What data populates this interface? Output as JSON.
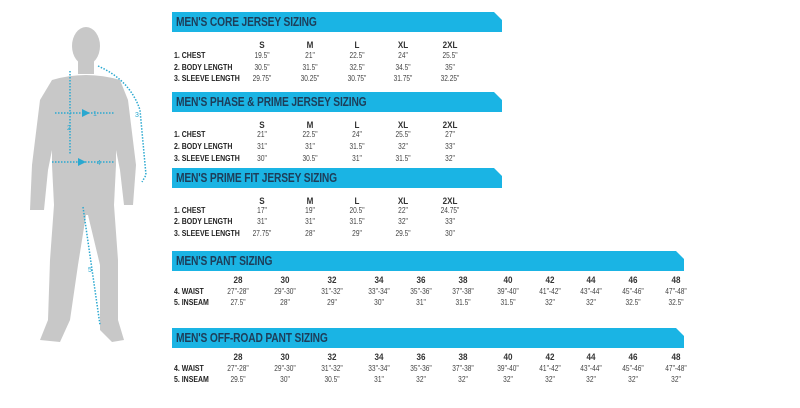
{
  "accent_color": "#1ab4e4",
  "title_color": "#1d3e5a",
  "figure": {
    "labels": [
      "1",
      "2",
      "3",
      "4",
      "5"
    ]
  },
  "tables": [
    {
      "title": "MEN'S CORE JERSEY SIZING",
      "sizes": [
        "S",
        "M",
        "L",
        "XL",
        "2XL"
      ],
      "rows": [
        {
          "label": "1. CHEST",
          "values": [
            "19.5\"",
            "21\"",
            "22.5\"",
            "24\"",
            "25.5\""
          ]
        },
        {
          "label": "2. BODY LENGTH",
          "values": [
            "30.5\"",
            "31.5\"",
            "32.5\"",
            "34.5\"",
            "35\""
          ]
        },
        {
          "label": "3. SLEEVE LENGTH",
          "values": [
            "29.75\"",
            "30.25\"",
            "30.75\"",
            "31.75\"",
            "32.25\""
          ]
        }
      ]
    },
    {
      "title": "MEN'S PHASE & PRIME JERSEY SIZING",
      "sizes": [
        "S",
        "M",
        "L",
        "XL",
        "2XL"
      ],
      "rows": [
        {
          "label": "1. CHEST",
          "values": [
            "21\"",
            "22.5\"",
            "24\"",
            "25.5\"",
            "27\""
          ]
        },
        {
          "label": "2. BODY LENGTH",
          "values": [
            "31\"",
            "31\"",
            "31.5\"",
            "32\"",
            "33\""
          ]
        },
        {
          "label": "3. SLEEVE LENGTH",
          "values": [
            "30\"",
            "30.5\"",
            "31\"",
            "31.5\"",
            "32\""
          ]
        }
      ]
    },
    {
      "title": "MEN'S PRIME FIT JERSEY SIZING",
      "sizes": [
        "S",
        "M",
        "L",
        "XL",
        "2XL"
      ],
      "rows": [
        {
          "label": "1. CHEST",
          "values": [
            "17\"",
            "19\"",
            "20.5\"",
            "22\"",
            "24.75\""
          ]
        },
        {
          "label": "2. BODY LENGTH",
          "values": [
            "31\"",
            "31\"",
            "31.5\"",
            "32\"",
            "33\""
          ]
        },
        {
          "label": "3. SLEEVE LENGTH",
          "values": [
            "27.75\"",
            "28\"",
            "29\"",
            "29.5\"",
            "30\""
          ]
        }
      ]
    },
    {
      "title": "MEN'S PANT SIZING",
      "sizes": [
        "28",
        "30",
        "32",
        "34",
        "36",
        "38",
        "40",
        "42",
        "44",
        "46",
        "48"
      ],
      "rows": [
        {
          "label": "4. WAIST",
          "values": [
            "27\"-28\"",
            "29\"-30\"",
            "31\"-32\"",
            "33\"-34\"",
            "35\"-36\"",
            "37\"-38\"",
            "39\"-40\"",
            "41\"-42\"",
            "43\"-44\"",
            "45\"-46\"",
            "47\"-48\""
          ]
        },
        {
          "label": "5. INSEAM",
          "values": [
            "27.5\"",
            "28\"",
            "29\"",
            "30\"",
            "31\"",
            "31.5\"",
            "31.5\"",
            "32\"",
            "32\"",
            "32.5\"",
            "32.5\""
          ]
        }
      ]
    },
    {
      "title": "MEN'S OFF-ROAD PANT SIZING",
      "sizes": [
        "28",
        "30",
        "32",
        "34",
        "36",
        "38",
        "40",
        "42",
        "44",
        "46",
        "48"
      ],
      "rows": [
        {
          "label": "4. WAIST",
          "values": [
            "27\"-28\"",
            "29\"-30\"",
            "31\"-32\"",
            "33\"-34\"",
            "35\"-36\"",
            "37\"-38\"",
            "39\"-40\"",
            "41\"-42\"",
            "43\"-44\"",
            "45\"-46\"",
            "47\"-48\""
          ]
        },
        {
          "label": "5. INSEAM",
          "values": [
            "29.5\"",
            "30\"",
            "30.5\"",
            "31\"",
            "32\"",
            "32\"",
            "32\"",
            "32\"",
            "32\"",
            "32\"",
            "32\""
          ]
        }
      ]
    }
  ]
}
